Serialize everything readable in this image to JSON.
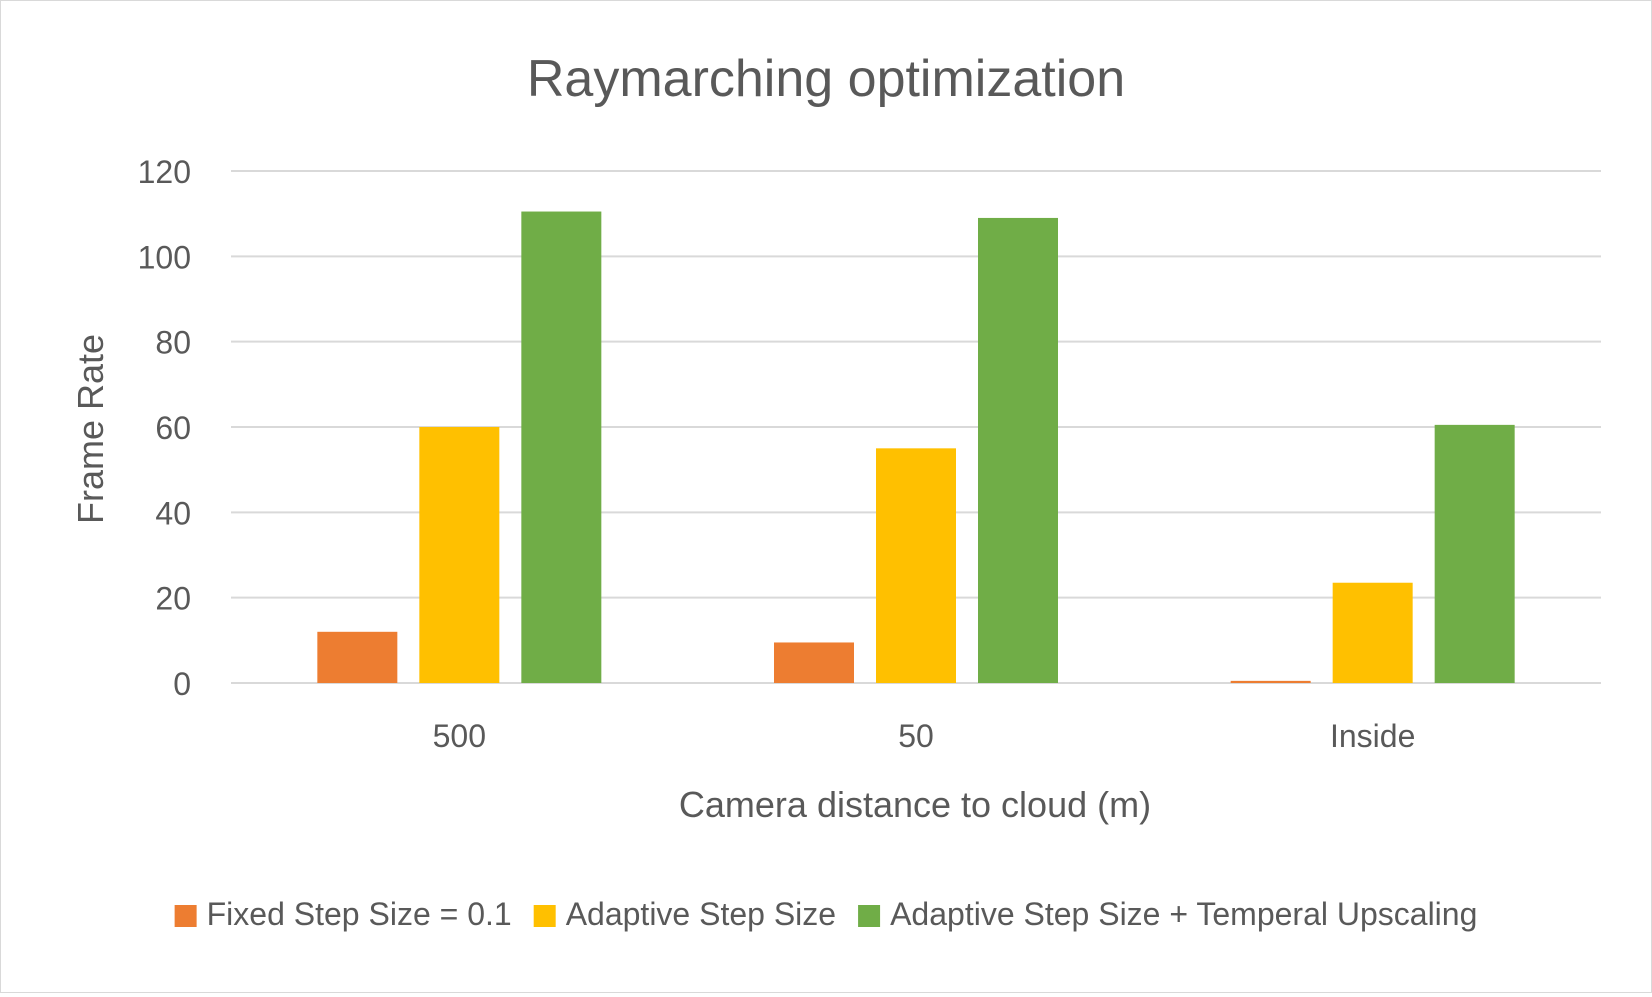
{
  "chart_data": {
    "type": "bar",
    "title": "Raymarching optimization",
    "xlabel": "Camera distance to cloud (m)",
    "ylabel": "Frame Rate",
    "categories": [
      "500",
      "50",
      "Inside"
    ],
    "ylim": [
      0,
      120
    ],
    "yticks": [
      0,
      20,
      40,
      60,
      80,
      100,
      120
    ],
    "grid": true,
    "legend_position": "bottom",
    "series": [
      {
        "name": "Fixed Step Size = 0.1",
        "color": "#ED7D31",
        "values": [
          12,
          9.5,
          0.5
        ]
      },
      {
        "name": "Adaptive Step Size",
        "color": "#FFC000",
        "values": [
          60,
          55,
          23.5
        ]
      },
      {
        "name": "Adaptive Step Size + Temperal Upscaling",
        "color": "#70AD47",
        "values": [
          110.5,
          109,
          60.5
        ]
      }
    ]
  }
}
